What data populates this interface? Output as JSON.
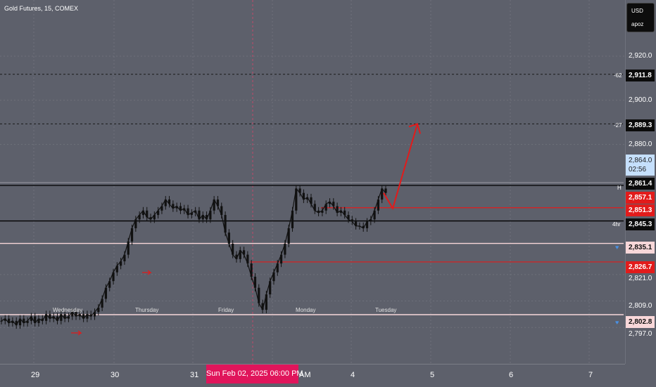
{
  "header": {
    "symbol_title": "Gold Futures, 15, COMEX"
  },
  "currency_box": {
    "currency": "USD",
    "user": "apoz"
  },
  "price_axis": {
    "ticks": [
      "2,920.0",
      "2,900.0",
      "2,880.0",
      "2,821.0",
      "2,809.0",
      "2,797.0"
    ]
  },
  "price_labels": {
    "level_62": "2,911.8",
    "level_27": "2,889.3",
    "current_price": "2,864.0",
    "countdown": "02:56",
    "high": "2,861.4",
    "red1": "2,857.1",
    "red2": "2,851.3",
    "fourhr": "2,845.3",
    "pink1": "2,835.1",
    "red3": "2,826.7",
    "pink2": "2,802.8"
  },
  "line_tags": {
    "t62": "-62",
    "t27": "-27",
    "high": "H",
    "fourhr": "4hr"
  },
  "day_labels": [
    "Wednesday",
    "Thursday",
    "Friday",
    "Monday",
    "Tuesday"
  ],
  "time_axis": {
    "labels": [
      "29",
      "30",
      "31",
      "AM",
      "4",
      "5",
      "6",
      "7"
    ],
    "crosshair": "Sun Feb 02, 2025   06:00 PM"
  },
  "colors": {
    "background": "#5d606b",
    "candle": "#111111",
    "red_line": "#e21b1b",
    "pink_line": "#f8d7d9",
    "black_line": "#000000",
    "projection": "#e21b1b"
  },
  "chart_data": {
    "type": "candlestick",
    "instrument": "Gold Futures",
    "interval": "15",
    "exchange": "COMEX",
    "ylim": [
      2794,
      2932
    ],
    "levels": [
      {
        "name": "-62",
        "value": 2911.8,
        "style": "dotted"
      },
      {
        "name": "-27",
        "value": 2889.3,
        "style": "dotted"
      },
      {
        "name": "H",
        "value": 2861.4,
        "style": "solid-black"
      },
      {
        "name": "",
        "value": 2851.3,
        "style": "solid-red"
      },
      {
        "name": "4hr",
        "value": 2845.3,
        "style": "solid-black"
      },
      {
        "name": "",
        "value": 2835.1,
        "style": "solid-pink"
      },
      {
        "name": "",
        "value": 2826.7,
        "style": "solid-red"
      },
      {
        "name": "",
        "value": 2802.8,
        "style": "solid-pink"
      }
    ],
    "current_price": 2864.0,
    "price_path": [
      2800,
      2801,
      2799,
      2800,
      2798,
      2801,
      2799,
      2800,
      2802,
      2799,
      2801,
      2800,
      2803,
      2801,
      2802,
      2800,
      2803,
      2801,
      2802,
      2804,
      2802,
      2803,
      2801,
      2803,
      2802,
      2804,
      2806,
      2810,
      2815,
      2818,
      2822,
      2825,
      2827,
      2830,
      2836,
      2842,
      2846,
      2848,
      2850,
      2847,
      2846,
      2848,
      2850,
      2852,
      2855,
      2853,
      2851,
      2852,
      2850,
      2851,
      2848,
      2849,
      2850,
      2846,
      2848,
      2846,
      2850,
      2855,
      2852,
      2848,
      2840,
      2835,
      2830,
      2828,
      2832,
      2830,
      2826,
      2820,
      2815,
      2808,
      2805,
      2812,
      2818,
      2822,
      2826,
      2830,
      2835,
      2842,
      2850,
      2860,
      2858,
      2855,
      2856,
      2853,
      2850,
      2849,
      2850,
      2853,
      2854,
      2852,
      2849,
      2850,
      2848,
      2846,
      2845,
      2843,
      2843,
      2842,
      2845,
      2846,
      2850,
      2855,
      2860,
      2858
    ],
    "projection": {
      "from_price": 2858,
      "dip_price": 2851,
      "target_price": 2889.3
    }
  }
}
